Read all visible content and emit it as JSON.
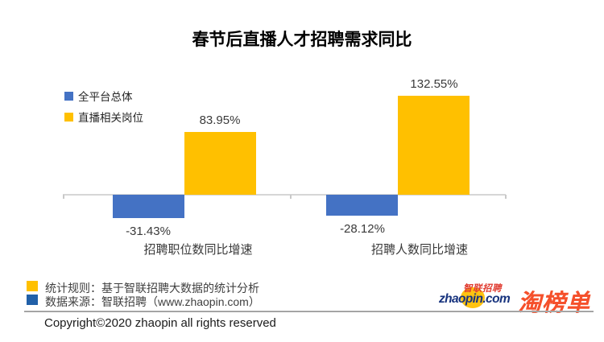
{
  "title": "春节后直播人才招聘需求同比",
  "chart_data": {
    "type": "bar",
    "title": "春节后直播人才招聘需求同比",
    "categories": [
      "招聘职位数同比增速",
      "招聘人数同比增速"
    ],
    "series": [
      {
        "name": "全平台总体",
        "color": "#4472C4",
        "values": [
          -31.43,
          -28.12
        ]
      },
      {
        "name": "直播相关岗位",
        "color": "#FFC000",
        "values": [
          83.95,
          132.55
        ]
      }
    ],
    "value_labels": [
      [
        "-31.43%",
        "-28.12%"
      ],
      [
        "83.95%",
        "132.55%"
      ]
    ],
    "xlabel": "",
    "ylabel": "",
    "ylim": [
      -40,
      150
    ],
    "grid": false,
    "legend_position": "top-left",
    "axis_color": "#d6d6d6"
  },
  "footer": {
    "notes": [
      {
        "bullet_color": "#FFC000",
        "text": "统计规则：基于智联招聘大数据的统计分析"
      },
      {
        "bullet_color": "#2160A8",
        "text": "数据来源：智联招聘（www.zhaopin.com）"
      }
    ],
    "copyright": "Copyright©2020 zhaopin all rights reserved",
    "logos": {
      "zhaopin_en": "zhaopin.com",
      "zhaopin_cn": "智联招聘",
      "taobangdan": "淘榜单"
    }
  }
}
